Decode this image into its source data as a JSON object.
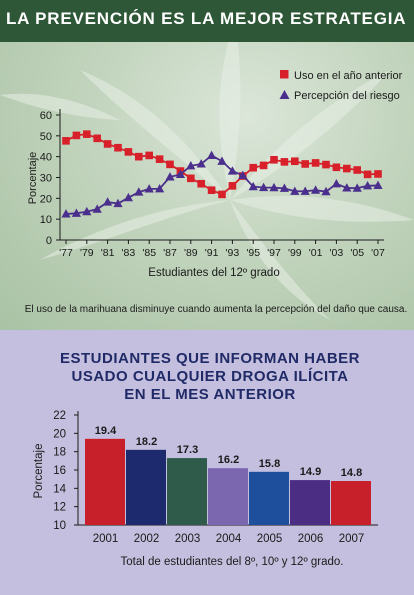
{
  "title": "LA PREVENCIÓN ES LA MEJOR ESTRATEGIA",
  "colors": {
    "title_bar": "#2e5737",
    "line_use": "#d8202a",
    "line_risk": "#4b2f8c",
    "bottom_bg": "#c5bfdf",
    "bar_colors": [
      "#c8202b",
      "#1e2a6e",
      "#2f5b4a",
      "#7b67b0",
      "#1d4f9c",
      "#4b2d83",
      "#c8202b"
    ]
  },
  "chart_data": [
    {
      "type": "line",
      "x": [
        1977,
        1978,
        1979,
        1980,
        1981,
        1982,
        1983,
        1984,
        1985,
        1986,
        1987,
        1988,
        1989,
        1990,
        1991,
        1992,
        1993,
        1994,
        1995,
        1996,
        1997,
        1998,
        1999,
        2000,
        2001,
        2002,
        2003,
        2004,
        2005,
        2006,
        2007
      ],
      "series": [
        {
          "name": "Uso en el año anterior",
          "marker": "square",
          "color": "#d8202a",
          "values": [
            47.6,
            50.2,
            50.8,
            48.8,
            46.1,
            44.3,
            42.3,
            40.0,
            40.6,
            38.8,
            36.3,
            33.1,
            29.6,
            27.0,
            23.9,
            21.9,
            26.0,
            30.7,
            34.7,
            35.8,
            38.5,
            37.5,
            37.8,
            36.5,
            37.0,
            36.2,
            34.9,
            34.3,
            33.6,
            31.5,
            31.7
          ]
        },
        {
          "name": "Percepción del riesgo",
          "marker": "triangle",
          "color": "#4b2f8c",
          "values": [
            12.5,
            12.8,
            13.6,
            14.8,
            18.2,
            17.5,
            20.3,
            23.0,
            24.5,
            24.6,
            30.3,
            31.5,
            35.6,
            36.5,
            40.6,
            37.8,
            33.1,
            31.0,
            25.6,
            25.2,
            25.1,
            24.8,
            23.4,
            23.4,
            23.9,
            23.2,
            27.0,
            25.0,
            24.9,
            26.0,
            26.2
          ]
        }
      ],
      "xticks": [
        "'77",
        "'79",
        "'81",
        "'83",
        "'85",
        "'87",
        "'89",
        "'91",
        "'93",
        "'95",
        "'97",
        "'99",
        "'01",
        "'03",
        "'05",
        "'07"
      ],
      "yticks": [
        "0",
        "10",
        "20",
        "30",
        "40",
        "50",
        "60"
      ],
      "ylim": [
        0,
        60
      ],
      "xlabel": "Estudiantes del 12º grado",
      "ylabel": "Porcentaje",
      "legend_position": "top-right",
      "caption": "El uso de la marihuana disminuye cuando aumenta la percepción del daño que causa."
    },
    {
      "type": "bar",
      "title_lines": [
        "ESTUDIANTES QUE INFORMAN HABER",
        "USADO CUALQUIER DROGA ILÍCITA",
        "EN EL MES ANTERIOR"
      ],
      "categories": [
        "2001",
        "2002",
        "2003",
        "2004",
        "2005",
        "2006",
        "2007"
      ],
      "values": [
        19.4,
        18.2,
        17.3,
        16.2,
        15.8,
        14.9,
        14.8
      ],
      "value_labels": [
        "19.4",
        "18.2",
        "17.3",
        "16.2",
        "15.8",
        "14.9",
        "14.8"
      ],
      "yticks": [
        "10",
        "12",
        "14",
        "16",
        "18",
        "20",
        "22"
      ],
      "ylim": [
        10,
        22
      ],
      "ylabel": "Porcentaje",
      "xlabel": "Total de estudiantes del 8º, 10º y 12º grado."
    }
  ]
}
